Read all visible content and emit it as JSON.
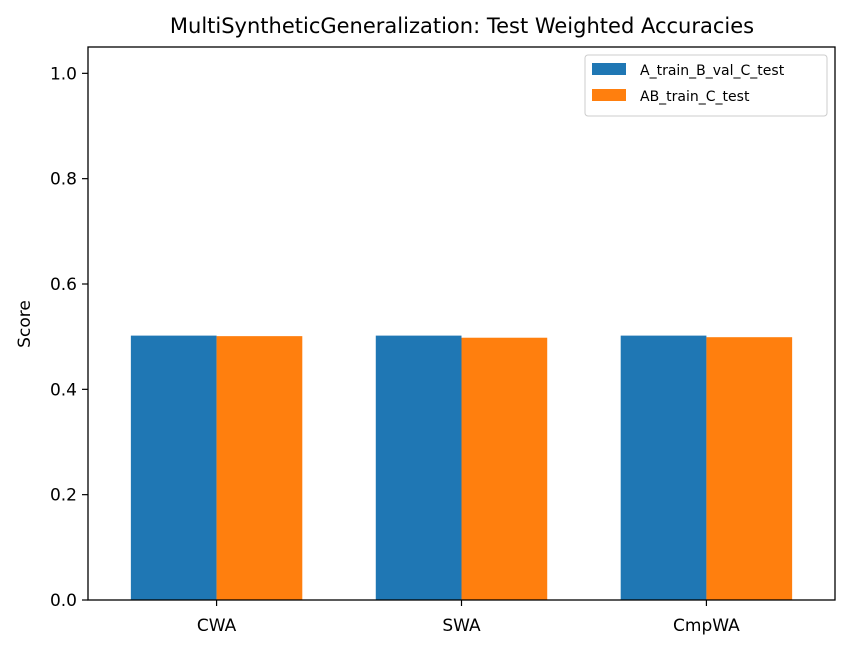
{
  "chart_data": {
    "type": "bar",
    "title": "MultiSyntheticGeneralization: Test Weighted Accuracies",
    "xlabel": "",
    "ylabel": "Score",
    "categories": [
      "CWA",
      "SWA",
      "CmpWA"
    ],
    "series": [
      {
        "name": "A_train_B_val_C_test",
        "color": "#1f77b4",
        "values": [
          0.502,
          0.502,
          0.502
        ]
      },
      {
        "name": "AB_train_C_test",
        "color": "#ff7f0e",
        "values": [
          0.501,
          0.498,
          0.499
        ]
      }
    ],
    "ylim": [
      0,
      1.05
    ],
    "yticks": [
      0.0,
      0.2,
      0.4,
      0.6,
      0.8,
      1.0
    ],
    "ytick_labels": [
      "0.0",
      "0.2",
      "0.4",
      "0.6",
      "0.8",
      "1.0"
    ],
    "grid": false,
    "legend_position": "top-right"
  }
}
